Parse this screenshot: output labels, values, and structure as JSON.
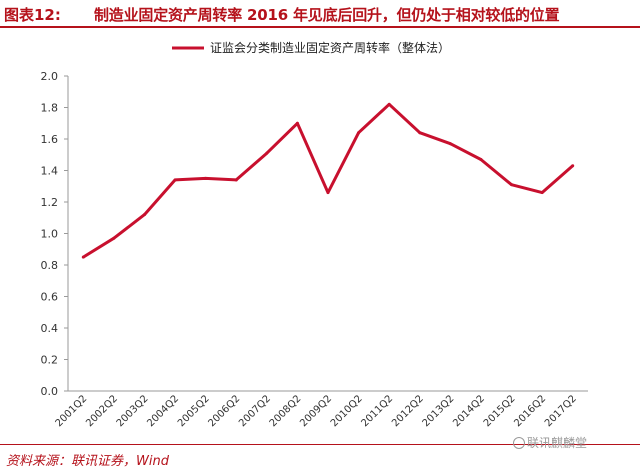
{
  "header": {
    "figure_label": "图表12:",
    "title": "制造业固定资产周转率 2016 年见底后回升，但仍处于相对较低的位置"
  },
  "footer": {
    "source": "资料来源：联讯证券，Wind",
    "watermark": "联讯麒麟堂"
  },
  "chart_data": {
    "type": "line",
    "x": [
      "2001Q2",
      "2002Q2",
      "2003Q2",
      "2004Q2",
      "2005Q2",
      "2006Q2",
      "2007Q2",
      "2008Q2",
      "2009Q2",
      "2010Q2",
      "2011Q2",
      "2012Q2",
      "2013Q2",
      "2014Q2",
      "2015Q2",
      "2016Q2",
      "2017Q2"
    ],
    "series": [
      {
        "name": "证监会分类制造业固定资产周转率（整体法）",
        "color": "#c8102e",
        "values": [
          0.85,
          0.97,
          1.12,
          1.34,
          1.35,
          1.34,
          1.51,
          1.7,
          1.26,
          1.64,
          1.82,
          1.64,
          1.57,
          1.47,
          1.31,
          1.26,
          1.43
        ]
      }
    ],
    "ylim": [
      0.0,
      2.0
    ],
    "yticks": [
      "0.0",
      "0.2",
      "0.4",
      "0.6",
      "0.8",
      "1.0",
      "1.2",
      "1.4",
      "1.6",
      "1.8",
      "2.0"
    ],
    "grid": false,
    "legend_position": "top"
  }
}
